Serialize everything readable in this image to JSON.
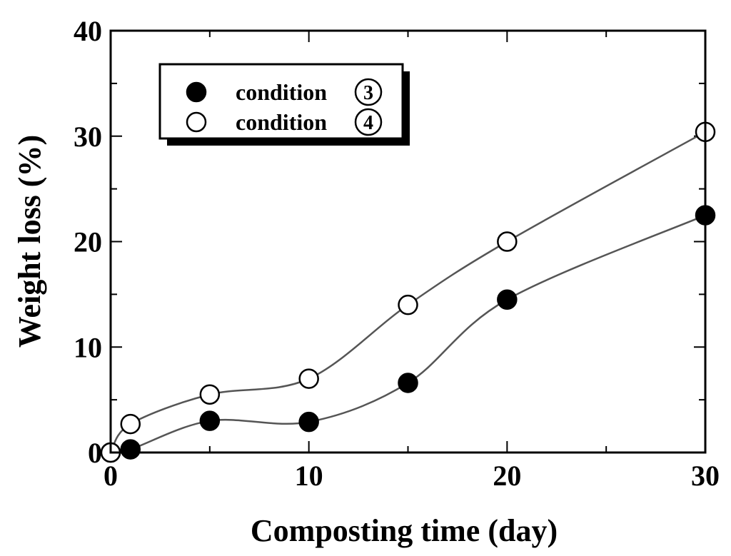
{
  "chart_data": {
    "type": "line",
    "title": "",
    "xlabel": "Composting time (day)",
    "ylabel": "Weight loss (%)",
    "xlim": [
      0,
      30
    ],
    "ylim": [
      0,
      40
    ],
    "xticks": [
      0,
      10,
      20,
      30
    ],
    "yticks": [
      0,
      10,
      20,
      30,
      40
    ],
    "xtick_labels": [
      "0",
      "10",
      "20",
      "30"
    ],
    "ytick_labels": [
      "0",
      "10",
      "20",
      "30",
      "40"
    ],
    "grid": false,
    "legend_position": "top-left",
    "series": [
      {
        "name": "condition ③",
        "label": "condition",
        "badge": "3",
        "marker": "filled-circle",
        "x": [
          0,
          1,
          5,
          10,
          15,
          20,
          30
        ],
        "values": [
          0,
          0.3,
          3.0,
          2.9,
          6.6,
          14.5,
          22.5
        ]
      },
      {
        "name": "condition ④",
        "label": "condition",
        "badge": "4",
        "marker": "open-circle",
        "x": [
          0,
          1,
          5,
          10,
          15,
          20,
          30
        ],
        "values": [
          0,
          2.7,
          5.5,
          7.0,
          14.0,
          20.0,
          30.4
        ]
      }
    ],
    "colors": {
      "line": "#555555",
      "marker": "#000000",
      "background": "#ffffff"
    }
  }
}
